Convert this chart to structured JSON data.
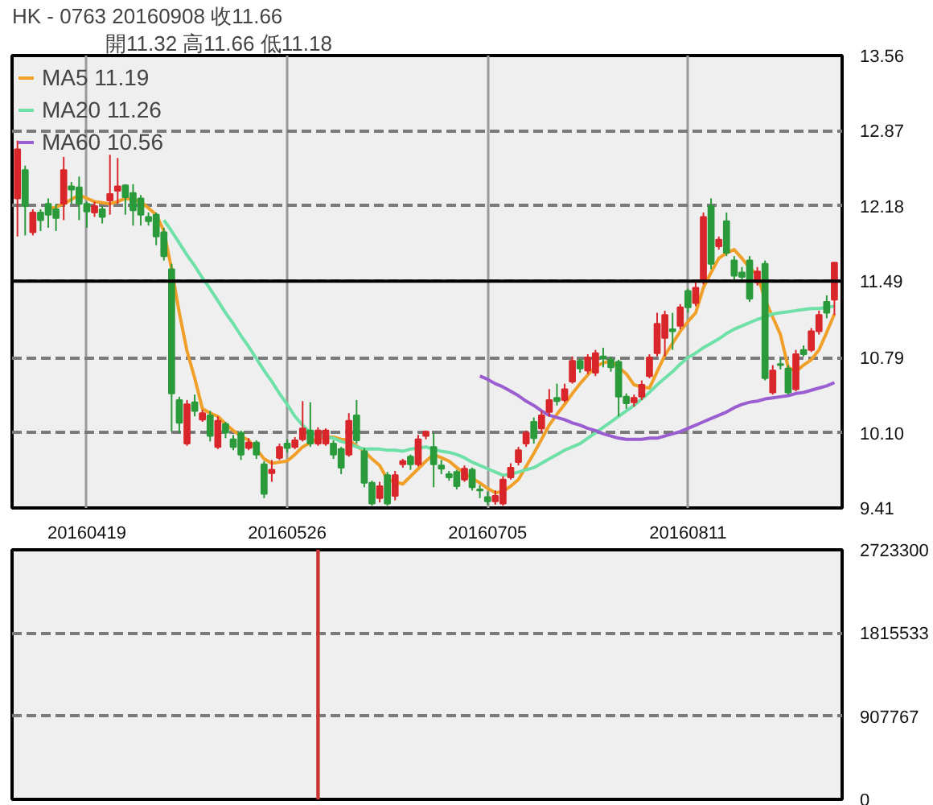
{
  "chart_data": [
    {
      "type": "candlestick",
      "title": "HK - 0763   20160908   收11.66",
      "subtitle": "開11.32   高11.66   低11.18",
      "categories": [
        null,
        null,
        null,
        null,
        null,
        null,
        null,
        null,
        null,
        "20160419",
        null,
        null,
        null,
        null,
        null,
        null,
        null,
        null,
        null,
        null,
        null,
        null,
        null,
        null,
        null,
        null,
        null,
        null,
        null,
        null,
        null,
        null,
        null,
        null,
        null,
        "20160526",
        null,
        null,
        null,
        null,
        null,
        null,
        null,
        null,
        null,
        null,
        null,
        null,
        null,
        null,
        null,
        null,
        null,
        null,
        null,
        null,
        null,
        null,
        null,
        null,
        null,
        "20160705",
        null,
        null,
        null,
        null,
        null,
        null,
        null,
        null,
        null,
        null,
        null,
        null,
        null,
        null,
        null,
        null,
        null,
        null,
        null,
        null,
        null,
        null,
        null,
        null,
        null,
        "20160811",
        null,
        null,
        null,
        null,
        null,
        null,
        null,
        null,
        null,
        null,
        null,
        null,
        null,
        null,
        null,
        null,
        null,
        null,
        null
      ],
      "ohlc": [
        [
          12.25,
          12.78,
          11.9,
          12.7
        ],
        [
          12.51,
          12.55,
          11.91,
          12.18
        ],
        [
          11.94,
          12.15,
          11.91,
          12.12
        ],
        [
          12.12,
          12.15,
          11.95,
          12.05
        ],
        [
          12.2,
          12.25,
          11.98,
          12.1
        ],
        [
          12.15,
          12.2,
          11.95,
          12.07
        ],
        [
          12.2,
          12.63,
          12.05,
          12.51
        ],
        [
          12.36,
          12.4,
          12.2,
          12.33
        ],
        [
          12.35,
          12.45,
          12.05,
          12.2
        ],
        [
          12.2,
          12.22,
          11.98,
          12.13
        ],
        [
          12.12,
          12.22,
          12.08,
          12.18
        ],
        [
          12.15,
          12.18,
          12.02,
          12.08
        ],
        [
          12.23,
          12.65,
          12.1,
          12.29
        ],
        [
          12.32,
          12.62,
          12.2,
          12.36
        ],
        [
          12.37,
          12.38,
          12.1,
          12.26
        ],
        [
          12.3,
          12.38,
          12.0,
          12.14
        ],
        [
          12.25,
          12.28,
          12.0,
          12.1
        ],
        [
          12.08,
          12.12,
          12.0,
          12.04
        ],
        [
          12.1,
          12.12,
          11.82,
          11.9
        ],
        [
          11.94,
          11.98,
          11.68,
          11.72
        ],
        [
          11.6,
          11.65,
          10.11,
          10.46
        ],
        [
          10.4,
          10.43,
          10.1,
          10.19
        ],
        [
          10.0,
          10.4,
          9.98,
          10.36
        ],
        [
          10.38,
          10.45,
          10.25,
          10.3
        ],
        [
          10.22,
          10.31,
          10.2,
          10.28
        ],
        [
          10.26,
          10.3,
          10.02,
          10.07
        ],
        [
          9.97,
          10.25,
          9.95,
          10.21
        ],
        [
          10.18,
          10.2,
          10.05,
          10.1
        ],
        [
          10.04,
          10.08,
          9.94,
          9.97
        ],
        [
          10.1,
          10.12,
          9.85,
          9.9
        ],
        [
          9.96,
          10.05,
          9.94,
          10.01
        ],
        [
          10.01,
          10.03,
          9.86,
          9.9
        ],
        [
          9.81,
          9.84,
          9.5,
          9.54
        ],
        [
          9.73,
          9.85,
          9.65,
          9.76
        ],
        [
          9.87,
          10.0,
          9.85,
          9.97
        ],
        [
          10.0,
          10.04,
          9.92,
          9.96
        ],
        [
          9.97,
          10.06,
          9.95,
          10.03
        ],
        [
          10.04,
          10.39,
          10.02,
          10.14
        ],
        [
          10.12,
          10.38,
          9.97,
          10.0
        ],
        [
          10.0,
          10.15,
          9.98,
          10.12
        ],
        [
          10.0,
          10.14,
          9.98,
          10.12
        ],
        [
          10.0,
          10.03,
          9.86,
          9.9
        ],
        [
          9.95,
          9.97,
          9.72,
          9.78
        ],
        [
          9.9,
          10.28,
          9.88,
          10.21
        ],
        [
          10.26,
          10.4,
          10.0,
          10.03
        ],
        [
          9.93,
          9.96,
          9.6,
          9.64
        ],
        [
          9.64,
          9.66,
          9.43,
          9.45
        ],
        [
          9.5,
          9.65,
          9.46,
          9.61
        ],
        [
          9.71,
          9.74,
          9.43,
          9.45
        ],
        [
          9.52,
          9.75,
          9.48,
          9.71
        ],
        [
          9.81,
          9.86,
          9.78,
          9.84
        ],
        [
          9.88,
          9.9,
          9.76,
          9.81
        ],
        [
          9.81,
          10.08,
          9.79,
          10.04
        ],
        [
          10.07,
          10.12,
          10.04,
          10.11
        ],
        [
          9.97,
          10.1,
          9.6,
          9.81
        ],
        [
          9.8,
          9.85,
          9.72,
          9.77
        ],
        [
          9.72,
          9.75,
          9.66,
          9.69
        ],
        [
          9.74,
          9.76,
          9.58,
          9.61
        ],
        [
          9.67,
          9.8,
          9.65,
          9.77
        ],
        [
          9.76,
          9.78,
          9.57,
          9.6
        ],
        [
          9.58,
          9.62,
          9.5,
          9.57
        ],
        [
          9.51,
          9.56,
          9.44,
          9.47
        ],
        [
          9.47,
          9.57,
          9.44,
          9.52
        ],
        [
          9.45,
          9.7,
          9.43,
          9.67
        ],
        [
          9.69,
          9.82,
          9.67,
          9.78
        ],
        [
          9.83,
          9.97,
          9.8,
          9.94
        ],
        [
          10.0,
          10.12,
          9.97,
          10.1
        ],
        [
          10.2,
          10.24,
          10.0,
          10.05
        ],
        [
          10.14,
          10.3,
          10.1,
          10.26
        ],
        [
          10.29,
          10.5,
          10.25,
          10.4
        ],
        [
          10.42,
          10.55,
          10.35,
          10.39
        ],
        [
          10.4,
          10.55,
          10.38,
          10.5
        ],
        [
          10.57,
          10.8,
          10.55,
          10.76
        ],
        [
          10.76,
          10.78,
          10.65,
          10.69
        ],
        [
          10.67,
          10.82,
          10.64,
          10.79
        ],
        [
          10.65,
          10.86,
          10.62,
          10.83
        ],
        [
          10.8,
          10.88,
          10.7,
          10.78
        ],
        [
          10.77,
          10.8,
          10.66,
          10.7
        ],
        [
          10.75,
          10.77,
          10.25,
          10.43
        ],
        [
          10.43,
          10.46,
          10.32,
          10.37
        ],
        [
          10.38,
          10.45,
          10.34,
          10.42
        ],
        [
          10.43,
          10.58,
          10.4,
          10.54
        ],
        [
          10.62,
          10.82,
          10.6,
          10.79
        ],
        [
          10.83,
          11.2,
          10.8,
          11.1
        ],
        [
          10.97,
          11.22,
          10.8,
          11.18
        ],
        [
          11.05,
          11.2,
          10.86,
          11.03
        ],
        [
          11.08,
          11.28,
          11.05,
          11.25
        ],
        [
          11.4,
          11.42,
          11.2,
          11.25
        ],
        [
          11.29,
          11.48,
          11.26,
          11.43
        ],
        [
          11.5,
          12.12,
          11.46,
          12.08
        ],
        [
          12.18,
          12.25,
          11.6,
          11.65
        ],
        [
          11.81,
          11.9,
          11.78,
          11.87
        ],
        [
          12.04,
          12.12,
          11.72,
          11.75
        ],
        [
          11.68,
          11.72,
          11.5,
          11.54
        ],
        [
          11.57,
          11.62,
          11.5,
          11.53
        ],
        [
          11.68,
          11.72,
          11.3,
          11.33
        ],
        [
          11.48,
          11.62,
          11.45,
          11.58
        ],
        [
          11.65,
          11.68,
          10.58,
          10.6
        ],
        [
          10.47,
          10.72,
          10.45,
          10.67
        ],
        [
          10.73,
          10.78,
          10.68,
          10.72
        ],
        [
          10.69,
          10.72,
          10.45,
          10.47
        ],
        [
          10.5,
          10.86,
          10.48,
          10.82
        ],
        [
          10.86,
          10.9,
          10.8,
          10.82
        ],
        [
          10.86,
          11.06,
          10.84,
          11.03
        ],
        [
          11.03,
          11.22,
          11.0,
          11.18
        ],
        [
          11.3,
          11.36,
          11.15,
          11.2
        ],
        [
          11.32,
          11.66,
          11.18,
          11.66
        ]
      ],
      "colors": [
        "#d9262b",
        "#2a9a3a",
        "#d9262b",
        "#2a9a3a",
        "#2a9a3a",
        "#2a9a3a",
        "#d9262b",
        "#2a9a3a",
        "#2a9a3a",
        "#2a9a3a",
        "#d9262b",
        "#2a9a3a",
        "#d9262b",
        "#d9262b",
        "#2a9a3a",
        "#2a9a3a",
        "#2a9a3a",
        "#2a9a3a",
        "#2a9a3a",
        "#2a9a3a",
        "#2a9a3a",
        "#2a9a3a",
        "#d9262b",
        "#2a9a3a",
        "#d9262b",
        "#2a9a3a",
        "#d9262b",
        "#2a9a3a",
        "#2a9a3a",
        "#2a9a3a",
        "#d9262b",
        "#2a9a3a",
        "#2a9a3a",
        "#d9262b",
        "#d9262b",
        "#2a9a3a",
        "#d9262b",
        "#d9262b",
        "#2a9a3a",
        "#d9262b",
        "#d9262b",
        "#2a9a3a",
        "#2a9a3a",
        "#d9262b",
        "#2a9a3a",
        "#2a9a3a",
        "#2a9a3a",
        "#d9262b",
        "#2a9a3a",
        "#d9262b",
        "#d9262b",
        "#2a9a3a",
        "#d9262b",
        "#d9262b",
        "#2a9a3a",
        "#2a9a3a",
        "#2a9a3a",
        "#2a9a3a",
        "#d9262b",
        "#2a9a3a",
        "#2a9a3a",
        "#2a9a3a",
        "#d9262b",
        "#d9262b",
        "#d9262b",
        "#d9262b",
        "#d9262b",
        "#2a9a3a",
        "#d9262b",
        "#d9262b",
        "#2a9a3a",
        "#d9262b",
        "#d9262b",
        "#2a9a3a",
        "#d9262b",
        "#d9262b",
        "#2a9a3a",
        "#2a9a3a",
        "#2a9a3a",
        "#2a9a3a",
        "#d9262b",
        "#d9262b",
        "#d9262b",
        "#d9262b",
        "#d9262b",
        "#2a9a3a",
        "#d9262b",
        "#2a9a3a",
        "#d9262b",
        "#d9262b",
        "#2a9a3a",
        "#d9262b",
        "#2a9a3a",
        "#2a9a3a",
        "#2a9a3a",
        "#2a9a3a",
        "#d9262b",
        "#2a9a3a",
        "#d9262b",
        "#2a9a3a",
        "#2a9a3a",
        "#d9262b",
        "#2a9a3a",
        "#d9262b",
        "#d9262b",
        "#2a9a3a",
        "#d9262b"
      ],
      "series": [
        {
          "type": "line",
          "name": "MA5 11.19",
          "color": "#f0a028",
          "values": [
            null,
            null,
            null,
            null,
            12.15,
            12.17,
            12.2,
            12.24,
            12.28,
            12.25,
            12.22,
            12.21,
            12.2,
            12.22,
            12.25,
            12.24,
            12.22,
            12.16,
            12.1,
            11.95,
            11.6,
            11.2,
            10.85,
            10.6,
            10.32,
            10.28,
            10.25,
            10.18,
            10.12,
            10.07,
            10.03,
            9.95,
            9.86,
            9.82,
            9.83,
            9.84,
            9.9,
            9.97,
            10.01,
            10.05,
            10.06,
            10.06,
            10.04,
            10.03,
            9.98,
            9.93,
            9.86,
            9.8,
            9.67,
            9.65,
            9.63,
            9.7,
            9.77,
            9.84,
            9.9,
            9.87,
            9.84,
            9.78,
            9.73,
            9.68,
            9.64,
            9.59,
            9.55,
            9.56,
            9.61,
            9.67,
            9.79,
            9.91,
            10.04,
            10.17,
            10.27,
            10.36,
            10.46,
            10.55,
            10.63,
            10.71,
            10.74,
            10.76,
            10.7,
            10.64,
            10.54,
            10.52,
            10.51,
            10.66,
            10.81,
            10.92,
            11.03,
            11.12,
            11.2,
            11.43,
            11.57,
            11.7,
            11.75,
            11.78,
            11.7,
            11.61,
            11.55,
            11.32,
            11.16,
            11.0,
            10.7,
            10.66,
            10.72,
            10.77,
            10.86,
            11.02,
            11.19
          ]
        },
        {
          "type": "line",
          "name": "MA20 11.26",
          "color": "#6ee0a8",
          "values": [
            null,
            null,
            null,
            null,
            null,
            null,
            null,
            null,
            null,
            null,
            null,
            null,
            null,
            null,
            null,
            null,
            null,
            null,
            null,
            12.05,
            11.95,
            11.84,
            11.73,
            11.63,
            11.52,
            11.42,
            11.31,
            11.2,
            11.1,
            10.99,
            10.89,
            10.78,
            10.67,
            10.57,
            10.46,
            10.36,
            10.25,
            10.17,
            10.1,
            10.08,
            10.06,
            10.05,
            10.02,
            10.0,
            9.97,
            9.95,
            9.95,
            9.95,
            9.94,
            9.94,
            9.93,
            9.95,
            9.96,
            9.97,
            9.95,
            9.93,
            9.92,
            9.9,
            9.87,
            9.83,
            9.8,
            9.77,
            9.74,
            9.71,
            9.72,
            9.74,
            9.76,
            9.78,
            9.82,
            9.86,
            9.9,
            9.94,
            9.97,
            10.0,
            10.05,
            10.1,
            10.15,
            10.2,
            10.25,
            10.3,
            10.35,
            10.41,
            10.47,
            10.54,
            10.6,
            10.66,
            10.73,
            10.79,
            10.83,
            10.88,
            10.92,
            10.96,
            11.01,
            11.05,
            11.08,
            11.11,
            11.14,
            11.16,
            11.19,
            11.2,
            11.21,
            11.22,
            11.23,
            11.24,
            11.24,
            11.25,
            11.26
          ]
        },
        {
          "type": "line",
          "name": "MA60 10.56",
          "color": "#9a5ed0",
          "values": [
            null,
            null,
            null,
            null,
            null,
            null,
            null,
            null,
            null,
            null,
            null,
            null,
            null,
            null,
            null,
            null,
            null,
            null,
            null,
            null,
            null,
            null,
            null,
            null,
            null,
            null,
            null,
            null,
            null,
            null,
            null,
            null,
            null,
            null,
            null,
            null,
            null,
            null,
            null,
            null,
            null,
            null,
            null,
            null,
            null,
            null,
            null,
            null,
            null,
            null,
            null,
            null,
            null,
            null,
            null,
            null,
            null,
            null,
            null,
            null,
            10.62,
            10.59,
            10.55,
            10.52,
            10.48,
            10.44,
            10.39,
            10.35,
            10.3,
            10.26,
            10.24,
            10.22,
            10.19,
            10.17,
            10.14,
            10.12,
            10.09,
            10.07,
            10.05,
            10.04,
            10.04,
            10.04,
            10.05,
            10.05,
            10.07,
            10.09,
            10.11,
            10.14,
            10.17,
            10.2,
            10.23,
            10.26,
            10.29,
            10.33,
            10.36,
            10.38,
            10.39,
            10.41,
            10.42,
            10.43,
            10.44,
            10.46,
            10.47,
            10.49,
            10.51,
            10.53,
            10.56
          ]
        }
      ],
      "ylim": [
        9.41,
        13.56
      ],
      "yticks": [
        9.41,
        {
          "value": 10.1,
          "label": "10.10"
        },
        10.79,
        11.49,
        12.18,
        12.87,
        13.56
      ],
      "ref_lines": [
        {
          "axis": "y",
          "value": 11.49,
          "color": "#000000"
        }
      ],
      "grid": true,
      "legend": "top left"
    },
    {
      "type": "bar",
      "categories": [
        null,
        null,
        null,
        null,
        null,
        null,
        null,
        null,
        null,
        null,
        null,
        null,
        null,
        null,
        null,
        null,
        null,
        null,
        null,
        null,
        null,
        null,
        null,
        null,
        null,
        null,
        null,
        null,
        null,
        null,
        null,
        null,
        null,
        null,
        null,
        null,
        null,
        null,
        null,
        null,
        null,
        null,
        null,
        null,
        null,
        null,
        null,
        null,
        null,
        null,
        null,
        null,
        null,
        null,
        null,
        null,
        null,
        null,
        null,
        null,
        null,
        null,
        null,
        null,
        null,
        null,
        null,
        null,
        null,
        null,
        null,
        null,
        null,
        null,
        null,
        null,
        null,
        null,
        null,
        null,
        null,
        null,
        null,
        null,
        null,
        null,
        null,
        null,
        null,
        null,
        null,
        null,
        null,
        null,
        null,
        null,
        null,
        null,
        null,
        null,
        null,
        null,
        null,
        null,
        null,
        null,
        null
      ],
      "values": [
        null,
        null,
        null,
        null,
        null,
        null,
        null,
        null,
        null,
        null,
        null,
        null,
        null,
        null,
        null,
        null,
        null,
        null,
        null,
        null,
        null,
        null,
        null,
        null,
        null,
        null,
        null,
        null,
        null,
        null,
        null,
        null,
        null,
        null,
        null,
        null,
        null,
        null,
        null,
        2723300,
        null,
        null,
        null,
        null,
        null,
        null,
        null,
        null,
        null,
        null,
        null,
        null,
        null,
        null,
        null,
        null,
        null,
        null,
        null,
        null,
        null,
        null,
        null,
        null,
        null,
        null,
        null,
        null,
        null,
        null,
        null,
        null,
        null,
        null,
        null,
        null,
        null,
        null,
        null,
        null,
        null,
        null,
        null,
        null,
        null,
        null,
        null,
        null,
        null,
        null,
        null,
        null,
        null,
        null,
        null,
        null,
        null,
        null,
        null,
        null,
        null,
        null,
        null,
        null,
        null,
        null,
        null
      ],
      "color": "#cc3333",
      "ylim": [
        0,
        2723300
      ],
      "yticks": [
        0,
        907767,
        1815533,
        2723300
      ],
      "grid": "y",
      "tick_labels": "y"
    }
  ]
}
